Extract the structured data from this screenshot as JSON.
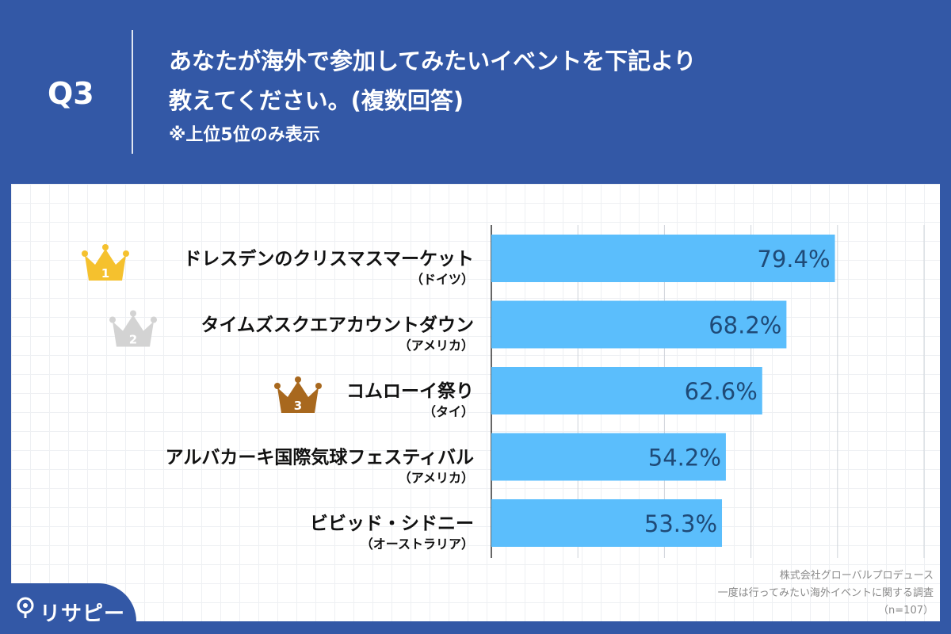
{
  "header": {
    "q_label": "Q3",
    "title_line1": "あなたが海外で参加してみたいイベントを下記より",
    "title_line2": "教えてください。(複数回答)",
    "note": "※上位5位のみ表示"
  },
  "chart_data": {
    "type": "bar",
    "orientation": "horizontal",
    "categories": [
      "ドレスデンのクリスマスマーケット",
      "タイムズスクエアカウントダウン",
      "コムローイ祭り",
      "アルバカーキ国際気球フェスティバル",
      "ビビッド・シドニー"
    ],
    "sublabels": [
      "（ドイツ）",
      "（アメリカ）",
      "（タイ）",
      "（アメリカ）",
      "（オーストラリア）"
    ],
    "values": [
      79.4,
      68.2,
      62.6,
      54.2,
      53.3
    ],
    "value_labels": [
      "79.4%",
      "68.2%",
      "62.6%",
      "54.2%",
      "53.3%"
    ],
    "ranks": [
      "1",
      "2",
      "3"
    ],
    "xlim": [
      0,
      100
    ],
    "grid": true,
    "colors": {
      "bar": "#5bbefc",
      "value_text": "#1f4a77",
      "crown_gold": "#f5c12e",
      "crown_silver": "#d3d3d3",
      "crown_bronze": "#a8681e"
    }
  },
  "source": {
    "line1": "株式会社グローバルプロデュース",
    "line2": "一度は行ってみたい海外イベントに関する調査",
    "line3": "（n=107）"
  },
  "logo": {
    "icon": "pin-icon",
    "text": "リサピー"
  }
}
